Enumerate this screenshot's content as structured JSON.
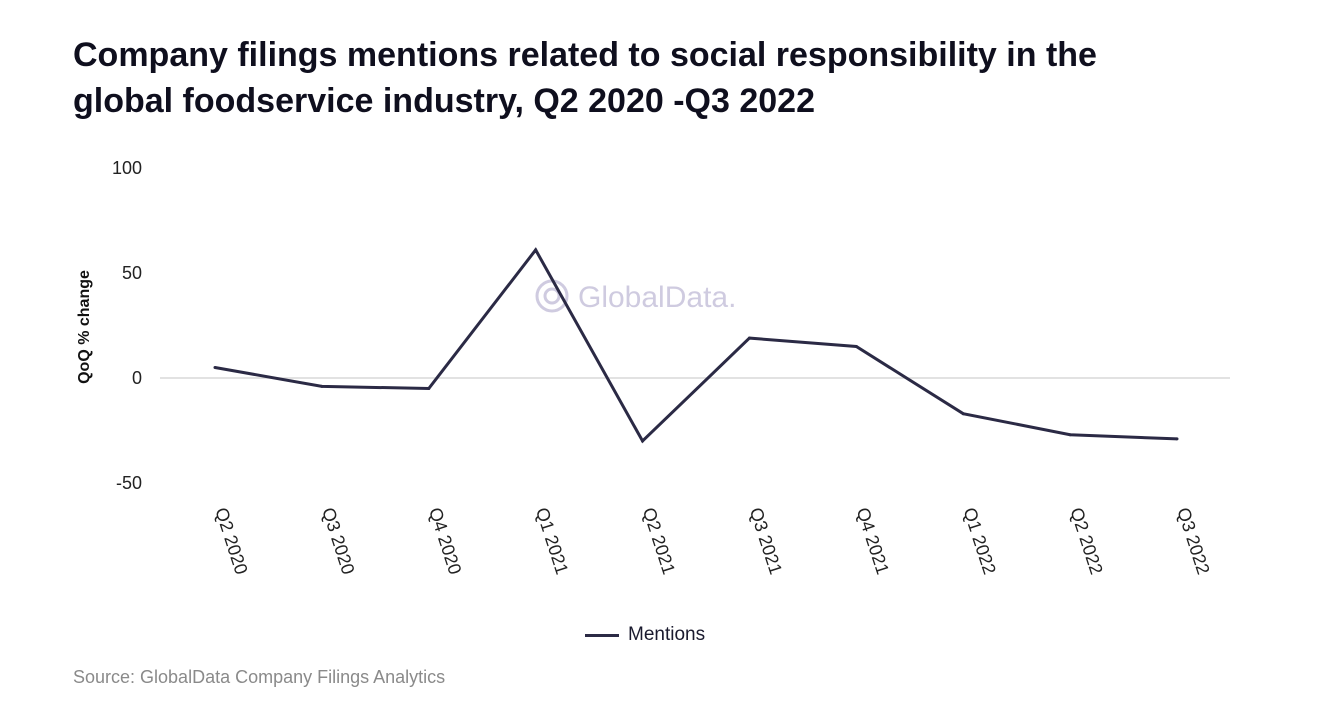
{
  "title": "Company filings mentions related to social responsibility in the global foodservice industry, Q2 2020 -Q3 2022",
  "source": "Source: GlobalData Company Filings Analytics",
  "watermark": "GlobalData.",
  "colors": {
    "line": "#2b2a45",
    "zero_line": "#d9d9d9",
    "watermark": "#cfcbe0"
  },
  "chart_data": {
    "type": "line",
    "categories": [
      "Q2 2020",
      "Q3 2020",
      "Q4 2020",
      "Q1 2021",
      "Q2 2021",
      "Q3 2021",
      "Q4 2021",
      "Q1 2022",
      "Q2 2022",
      "Q3 2022"
    ],
    "series": [
      {
        "name": "Mentions",
        "values": [
          5,
          -4,
          -5,
          61,
          -30,
          19,
          15,
          -17,
          -27,
          -29
        ]
      }
    ],
    "ylabel": "QoQ % change",
    "xlabel": "",
    "ylim": [
      -50,
      100
    ],
    "yticks": [
      100,
      50,
      0,
      -50
    ],
    "grid": false,
    "legend": "bottom-center"
  }
}
